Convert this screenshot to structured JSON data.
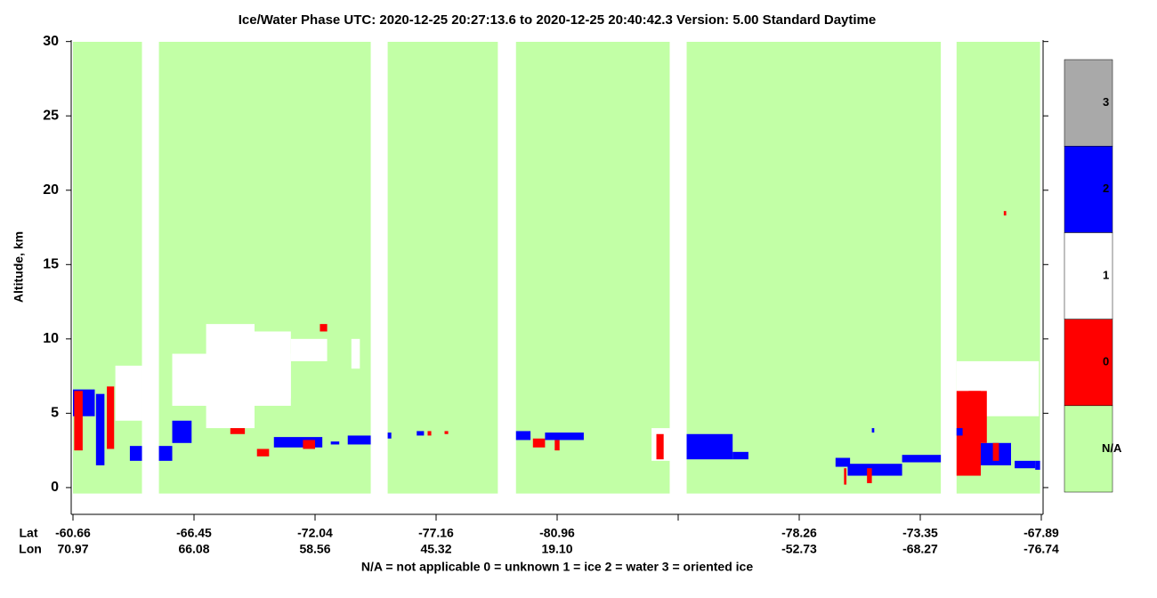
{
  "chart_data": {
    "type": "curtain",
    "title": "Ice/Water Phase    UTC:  2020-12-25   20:27:13.6  to  2020-12-25   20:40:42.3    Version: 5.00  Standard Daytime",
    "ylabel": "Altitude, km",
    "ylim": [
      -1.8,
      30.1
    ],
    "yticks": [
      0,
      5,
      10,
      15,
      20,
      25,
      30
    ],
    "xlim": [
      0,
      8
    ],
    "row_labels": [
      "Lat",
      "Lon"
    ],
    "lat": [
      "-60.66",
      "-66.45",
      "-72.04",
      "-77.16",
      "-80.96",
      null,
      "-78.26",
      "-73.35",
      "-67.89"
    ],
    "lon": [
      "70.97",
      "66.08",
      "58.56",
      "45.32",
      "19.10",
      null,
      "-52.73",
      "-68.27",
      "-76.74"
    ],
    "footnote": "N/A = not applicable     0 = unknown     1 = ice     2 = water     3 = oriented ice",
    "colorbar": [
      {
        "label": "N/A",
        "color": "#c2ffa6"
      },
      {
        "label": "0",
        "color": "#ff0000"
      },
      {
        "label": "1",
        "color": "#ffffff"
      },
      {
        "label": "2",
        "color": "#0000ff"
      },
      {
        "label": "3",
        "color": "#a9a9a9"
      }
    ],
    "valid_segments": [
      [
        0,
        0.57
      ],
      [
        0.71,
        2.46
      ],
      [
        2.6,
        3.51
      ],
      [
        3.66,
        4.93
      ],
      [
        5.07,
        7.17
      ],
      [
        7.3,
        7.99
      ]
    ],
    "valid_bottom": -0.4,
    "cells": [
      {
        "phase": 1,
        "x0": 0.35,
        "x1": 0.57,
        "y0": 4.5,
        "y1": 8.2
      },
      {
        "phase": 2,
        "x0": 0.0,
        "x1": 0.18,
        "y0": 4.8,
        "y1": 6.6
      },
      {
        "phase": 0,
        "x0": 0.01,
        "x1": 0.08,
        "y0": 2.5,
        "y1": 6.5
      },
      {
        "phase": 2,
        "x0": 0.19,
        "x1": 0.26,
        "y0": 1.5,
        "y1": 6.3
      },
      {
        "phase": 0,
        "x0": 0.28,
        "x1": 0.34,
        "y0": 2.6,
        "y1": 6.8
      },
      {
        "phase": 2,
        "x0": 0.47,
        "x1": 0.57,
        "y0": 1.8,
        "y1": 2.8
      },
      {
        "phase": 1,
        "x0": 0.82,
        "x1": 1.8,
        "y0": 5.5,
        "y1": 9.0
      },
      {
        "phase": 1,
        "x0": 1.1,
        "x1": 1.5,
        "y0": 4.0,
        "y1": 11.0
      },
      {
        "phase": 1,
        "x0": 1.5,
        "x1": 1.8,
        "y0": 6.0,
        "y1": 10.5
      },
      {
        "phase": 1,
        "x0": 1.8,
        "x1": 2.1,
        "y0": 8.5,
        "y1": 10.0
      },
      {
        "phase": 1,
        "x0": 2.3,
        "x1": 2.37,
        "y0": 8.0,
        "y1": 10.0
      },
      {
        "phase": 2,
        "x0": 0.71,
        "x1": 0.82,
        "y0": 1.8,
        "y1": 2.8
      },
      {
        "phase": 2,
        "x0": 0.82,
        "x1": 0.98,
        "y0": 3.0,
        "y1": 4.5
      },
      {
        "phase": 0,
        "x0": 1.3,
        "x1": 1.42,
        "y0": 3.6,
        "y1": 4.0
      },
      {
        "phase": 0,
        "x0": 1.52,
        "x1": 1.62,
        "y0": 2.1,
        "y1": 2.6
      },
      {
        "phase": 2,
        "x0": 1.66,
        "x1": 2.06,
        "y0": 2.7,
        "y1": 3.4
      },
      {
        "phase": 0,
        "x0": 1.9,
        "x1": 2.0,
        "y0": 2.6,
        "y1": 3.2
      },
      {
        "phase": 0,
        "x0": 2.04,
        "x1": 2.1,
        "y0": 10.5,
        "y1": 11.0
      },
      {
        "phase": 2,
        "x0": 2.13,
        "x1": 2.2,
        "y0": 2.9,
        "y1": 3.1
      },
      {
        "phase": 2,
        "x0": 2.27,
        "x1": 2.46,
        "y0": 2.9,
        "y1": 3.5
      },
      {
        "phase": 2,
        "x0": 2.6,
        "x1": 2.63,
        "y0": 3.3,
        "y1": 3.7
      },
      {
        "phase": 2,
        "x0": 2.84,
        "x1": 2.9,
        "y0": 3.5,
        "y1": 3.8
      },
      {
        "phase": 0,
        "x0": 2.93,
        "x1": 2.96,
        "y0": 3.5,
        "y1": 3.8
      },
      {
        "phase": 0,
        "x0": 3.07,
        "x1": 3.1,
        "y0": 3.6,
        "y1": 3.8
      },
      {
        "phase": 2,
        "x0": 3.66,
        "x1": 3.78,
        "y0": 3.2,
        "y1": 3.8
      },
      {
        "phase": 0,
        "x0": 3.8,
        "x1": 3.9,
        "y0": 2.7,
        "y1": 3.3
      },
      {
        "phase": 2,
        "x0": 3.9,
        "x1": 4.0,
        "y0": 3.2,
        "y1": 3.7
      },
      {
        "phase": 0,
        "x0": 3.98,
        "x1": 4.02,
        "y0": 2.5,
        "y1": 3.2
      },
      {
        "phase": 2,
        "x0": 4.0,
        "x1": 4.22,
        "y0": 3.2,
        "y1": 3.7
      },
      {
        "phase": 1,
        "x0": 4.78,
        "x1": 4.93,
        "y0": 1.8,
        "y1": 4.0
      },
      {
        "phase": 0,
        "x0": 4.82,
        "x1": 4.88,
        "y0": 1.9,
        "y1": 3.6
      },
      {
        "phase": 2,
        "x0": 5.07,
        "x1": 5.45,
        "y0": 1.9,
        "y1": 3.6
      },
      {
        "phase": 2,
        "x0": 5.45,
        "x1": 5.58,
        "y0": 1.9,
        "y1": 2.4
      },
      {
        "phase": 2,
        "x0": 6.3,
        "x1": 6.42,
        "y0": 1.4,
        "y1": 2.0
      },
      {
        "phase": 2,
        "x0": 6.4,
        "x1": 6.85,
        "y0": 0.8,
        "y1": 1.6
      },
      {
        "phase": 2,
        "x0": 6.85,
        "x1": 7.17,
        "y0": 1.7,
        "y1": 2.2
      },
      {
        "phase": 0,
        "x0": 6.37,
        "x1": 6.39,
        "y0": 0.2,
        "y1": 1.3
      },
      {
        "phase": 0,
        "x0": 6.56,
        "x1": 6.6,
        "y0": 0.3,
        "y1": 1.3
      },
      {
        "phase": 2,
        "x0": 6.6,
        "x1": 6.62,
        "y0": 3.7,
        "y1": 4.0
      },
      {
        "phase": 1,
        "x0": 7.3,
        "x1": 7.98,
        "y0": 4.8,
        "y1": 8.5
      },
      {
        "phase": 0,
        "x0": 7.3,
        "x1": 7.5,
        "y0": 0.8,
        "y1": 6.5
      },
      {
        "phase": 2,
        "x0": 7.3,
        "x1": 7.35,
        "y0": 3.5,
        "y1": 4.0
      },
      {
        "phase": 2,
        "x0": 7.5,
        "x1": 7.75,
        "y0": 1.5,
        "y1": 3.0
      },
      {
        "phase": 0,
        "x0": 7.6,
        "x1": 7.65,
        "y0": 1.8,
        "y1": 3.0
      },
      {
        "phase": 0,
        "x0": 7.4,
        "x1": 7.55,
        "y0": 3.0,
        "y1": 6.5
      },
      {
        "phase": 2,
        "x0": 7.78,
        "x1": 7.95,
        "y0": 1.3,
        "y1": 1.8
      },
      {
        "phase": 2,
        "x0": 7.95,
        "x1": 7.99,
        "y0": 1.2,
        "y1": 1.8
      },
      {
        "phase": 0,
        "x0": 7.69,
        "x1": 7.71,
        "y0": 18.3,
        "y1": 18.6
      }
    ]
  }
}
